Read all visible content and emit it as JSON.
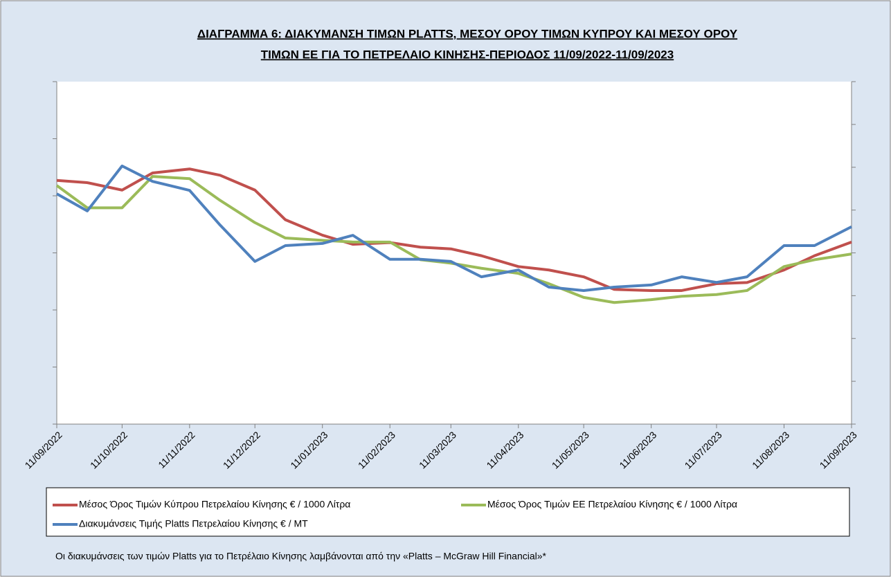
{
  "chart_data": {
    "type": "line",
    "title": [
      "ΔΙΑΓΡΑΜΜΑ 6: ΔΙΑΚΥΜΑΝΣΗ ΤΙΜΩΝ PLATTS, ΜΕΣΟΥ ΟΡΟΥ ΤΙΜΩΝ ΚΥΠΡΟΥ ΚΑΙ ΜΕΣΟΥ ΟΡΟΥ",
      "ΤΙΜΩΝ ΕΕ ΓΙΑ ΤΟ ΠΕΤΡΕΛΑΙΟ ΚΙΝΗΣΗΣ-ΠΕΡΙΟΔΟΣ 11/09/2022-11/09/2023"
    ],
    "x": [
      "11/09/2022",
      "25/09/2022",
      "11/10/2022",
      "25/10/2022",
      "11/11/2022",
      "25/11/2022",
      "11/12/2022",
      "25/12/2022",
      "11/01/2023",
      "25/01/2023",
      "11/02/2023",
      "25/02/2023",
      "11/03/2023",
      "25/03/2023",
      "11/04/2023",
      "25/04/2023",
      "11/05/2023",
      "25/05/2023",
      "11/06/2023",
      "25/06/2023",
      "11/07/2023",
      "25/07/2023",
      "11/08/2023",
      "25/08/2023",
      "11/09/2023"
    ],
    "xlim": [
      "11/09/2022",
      "11/09/2023"
    ],
    "xticks": [
      "11/09/2022",
      "11/10/2022",
      "11/11/2022",
      "11/12/2022",
      "11/01/2023",
      "11/02/2023",
      "11/03/2023",
      "11/04/2023",
      "11/05/2023",
      "11/06/2023",
      "11/07/2023",
      "11/08/2023",
      "11/09/2023"
    ],
    "ylim": [
      0,
      6
    ],
    "yticks": [
      0,
      1,
      2,
      3,
      4,
      5,
      6
    ],
    "y2lim": [
      0,
      8
    ],
    "y2ticks": [
      0,
      1,
      2,
      3,
      4,
      5,
      6,
      7,
      8
    ],
    "series": [
      {
        "name": "Μέσος Όρος Τιμών Κύπρου Πετρελαίου Κίνησης  € / 1000 Λίτρα",
        "color": "#c0504d",
        "values": [
          4.27,
          4.23,
          4.1,
          4.4,
          4.47,
          4.36,
          4.1,
          3.58,
          3.31,
          3.15,
          3.18,
          3.1,
          3.07,
          2.95,
          2.76,
          2.7,
          2.58,
          2.36,
          2.34,
          2.34,
          2.46,
          2.48,
          2.7,
          2.95,
          3.19
        ]
      },
      {
        "name": "Μέσος Όρος Τιμών ΕΕ Πετρελαίου Κίνησης  € / 1000 Λίτρα",
        "color": "#9bbb59",
        "values": [
          4.18,
          3.79,
          3.79,
          4.34,
          4.3,
          3.92,
          3.53,
          3.26,
          3.22,
          3.19,
          3.19,
          2.88,
          2.82,
          2.73,
          2.64,
          2.46,
          2.22,
          2.13,
          2.18,
          2.24,
          2.27,
          2.34,
          2.76,
          2.88,
          2.98
        ]
      },
      {
        "name": "Διακυμάνσεις Τιμής Platts Πετρελαίου Κίνησης € / MT",
        "color": "#4f81bd",
        "axis": "y2",
        "values": [
          5.38,
          4.98,
          6.03,
          5.67,
          5.46,
          4.65,
          3.8,
          4.17,
          4.22,
          4.41,
          3.85,
          3.85,
          3.8,
          3.44,
          3.6,
          3.2,
          3.12,
          3.2,
          3.25,
          3.44,
          3.31,
          3.44,
          4.17,
          4.17,
          4.61
        ]
      }
    ],
    "legend": "bottom",
    "footnote": "Οι διακυμάνσεις των τιμών Platts για το Πετρέλαιο Κίνησης λαμβάνονται από την «Platts – McGraw Hill Financial»*"
  }
}
